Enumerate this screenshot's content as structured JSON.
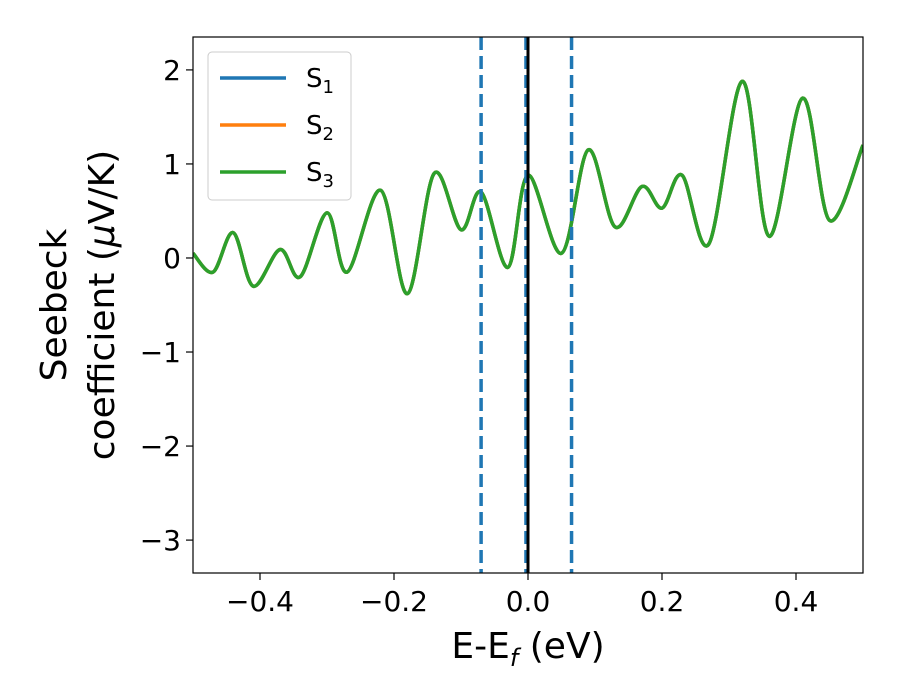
{
  "chart_data": {
    "type": "line",
    "title": "",
    "xlabel_main": "E-E",
    "xlabel_sub": "f",
    "xlabel_unit": " (eV)",
    "ylabel_line1": "Seebeck",
    "ylabel_line2_text": "coefficient  (",
    "ylabel_mu": "μ",
    "ylabel_line2_unit": "V/K)",
    "xlim": [
      -0.5,
      0.5
    ],
    "ylim": [
      -3.35,
      2.35
    ],
    "x_ticks": [
      -0.4,
      -0.2,
      0.0,
      0.2,
      0.4
    ],
    "x_tick_labels": [
      "−0.4",
      "−0.2",
      "0.0",
      "0.2",
      "0.4"
    ],
    "y_ticks": [
      -3,
      -2,
      -1,
      0,
      1,
      2
    ],
    "y_tick_labels": [
      "−3",
      "−2",
      "−1",
      "0",
      "1",
      "2"
    ],
    "legend_position": "top-left",
    "series": [
      {
        "name": "S",
        "sub": "1",
        "color": "#1f77b4",
        "x": [
          -0.5,
          -0.47,
          -0.44,
          -0.41,
          -0.37,
          -0.34,
          -0.3,
          -0.27,
          -0.22,
          -0.18,
          -0.14,
          -0.1,
          -0.07,
          -0.03,
          0.0,
          0.05,
          0.09,
          0.13,
          0.17,
          0.2,
          0.23,
          0.27,
          0.32,
          0.36,
          0.41,
          0.45,
          0.5
        ],
        "y": [
          0.05,
          -0.15,
          0.27,
          -0.3,
          0.09,
          -0.2,
          0.48,
          -0.15,
          0.72,
          -0.38,
          0.9,
          0.3,
          0.7,
          -0.1,
          0.88,
          0.05,
          1.15,
          0.33,
          0.76,
          0.53,
          0.88,
          0.15,
          1.88,
          0.23,
          1.7,
          0.4,
          1.2
        ]
      },
      {
        "name": "S",
        "sub": "2",
        "color": "#ff7f0e",
        "x": [
          -0.5,
          -0.47,
          -0.44,
          -0.41,
          -0.37,
          -0.34,
          -0.3,
          -0.27,
          -0.22,
          -0.18,
          -0.14,
          -0.1,
          -0.07,
          -0.03,
          0.0,
          0.05,
          0.09,
          0.13,
          0.17,
          0.2,
          0.23,
          0.27,
          0.32,
          0.36,
          0.41,
          0.45,
          0.5
        ],
        "y": [
          0.05,
          -0.15,
          0.27,
          -0.3,
          0.09,
          -0.2,
          0.48,
          -0.15,
          0.72,
          -0.38,
          0.9,
          0.3,
          0.7,
          -0.1,
          0.88,
          0.05,
          1.15,
          0.33,
          0.76,
          0.53,
          0.88,
          0.15,
          1.88,
          0.23,
          1.7,
          0.4,
          1.2
        ]
      },
      {
        "name": "S",
        "sub": "3",
        "color": "#2ca02c",
        "x": [
          -0.5,
          -0.47,
          -0.44,
          -0.41,
          -0.37,
          -0.34,
          -0.3,
          -0.27,
          -0.22,
          -0.18,
          -0.14,
          -0.1,
          -0.07,
          -0.03,
          0.0,
          0.05,
          0.09,
          0.13,
          0.17,
          0.2,
          0.23,
          0.27,
          0.32,
          0.36,
          0.41,
          0.45,
          0.5
        ],
        "y": [
          0.05,
          -0.15,
          0.27,
          -0.3,
          0.09,
          -0.2,
          0.48,
          -0.15,
          0.72,
          -0.38,
          0.9,
          0.3,
          0.7,
          -0.1,
          0.88,
          0.05,
          1.15,
          0.33,
          0.76,
          0.53,
          0.88,
          0.15,
          1.88,
          0.23,
          1.7,
          0.4,
          1.2
        ]
      }
    ],
    "vertical_lines": [
      {
        "x": -0.07,
        "style": "dashed",
        "color": "#1f77b4"
      },
      {
        "x": -0.003,
        "style": "dashed",
        "color": "#1f77b4"
      },
      {
        "x": 0.0,
        "style": "solid",
        "color": "#000000"
      },
      {
        "x": 0.065,
        "style": "dashed",
        "color": "#1f77b4"
      }
    ]
  }
}
